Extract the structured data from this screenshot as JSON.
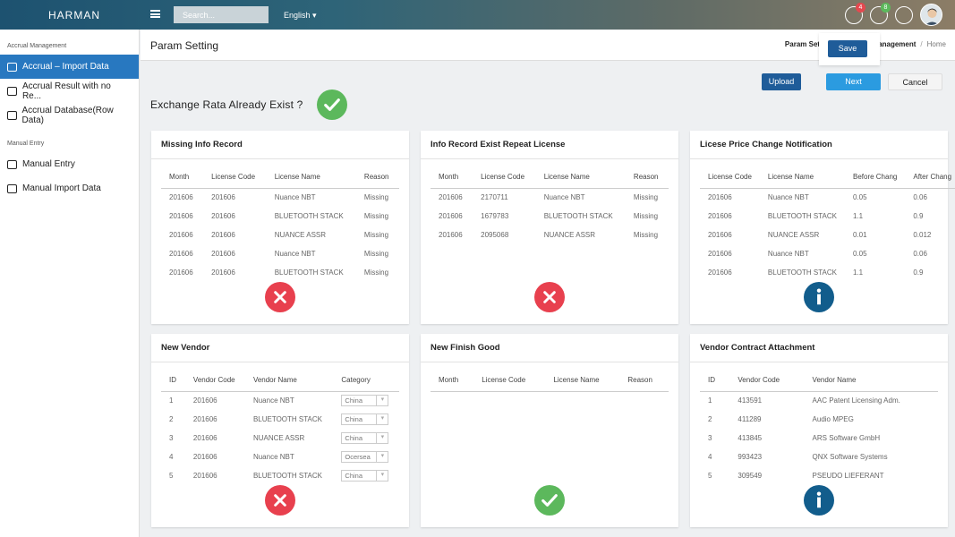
{
  "header": {
    "logo": "HARMAN",
    "search_placeholder": "Search...",
    "language": "English",
    "badges": [
      4,
      8
    ]
  },
  "sidebar": {
    "sections": [
      {
        "title": "Accrual Management",
        "items": [
          "Accrual – Import Data",
          "Accrual Result with no Re...",
          "Accrual Database(Row Data)"
        ],
        "active": 0
      },
      {
        "title": "Manual Entry",
        "items": [
          "Manual Entry",
          "Manual Import Data"
        ]
      }
    ]
  },
  "page": {
    "title": "Param Setting",
    "breadcrumb": [
      "Param Setting",
      "Accrual Management",
      "Home"
    ],
    "save": "Save",
    "buttons": [
      "Upload",
      "Next",
      "Cancel"
    ],
    "question": "Exchange Rata Already Exist ?",
    "question_status": "ok"
  },
  "panels": [
    {
      "title": "Missing Info Record",
      "status": "error",
      "columns": [
        "Month",
        "License Code",
        "License Name",
        "Reason"
      ],
      "rows": [
        [
          "201606",
          "201606",
          "Nuance NBT",
          "Missing"
        ],
        [
          "201606",
          "201606",
          "BLUETOOTH STACK",
          "Missing"
        ],
        [
          "201606",
          "201606",
          "NUANCE ASSR",
          "Missing"
        ],
        [
          "201606",
          "201606",
          "Nuance NBT",
          "Missing"
        ],
        [
          "201606",
          "201606",
          "BLUETOOTH STACK",
          "Missing"
        ]
      ]
    },
    {
      "title": "Info Record Exist Repeat License",
      "status": "error",
      "columns": [
        "Month",
        "License Code",
        "License Name",
        "Reason"
      ],
      "rows": [
        [
          "201606",
          "2170711",
          "Nuance NBT",
          "Missing"
        ],
        [
          "201606",
          "1679783",
          "BLUETOOTH STACK",
          "Missing"
        ],
        [
          "201606",
          "2095068",
          "NUANCE ASSR",
          "Missing"
        ]
      ]
    },
    {
      "title": "Licese Price Change Notification",
      "status": "info",
      "columns": [
        "License Code",
        "License Name",
        "Before Chang",
        "After Chang"
      ],
      "rows": [
        [
          "201606",
          "Nuance NBT",
          "0.05",
          "0.06"
        ],
        [
          "201606",
          "BLUETOOTH STACK",
          "1.1",
          "0.9"
        ],
        [
          "201606",
          "NUANCE ASSR",
          "0.01",
          "0.012"
        ],
        [
          "201606",
          "Nuance NBT",
          "0.05",
          "0.06"
        ],
        [
          "201606",
          "BLUETOOTH STACK",
          "1.1",
          "0.9"
        ]
      ]
    },
    {
      "title": "New Vendor",
      "status": "error",
      "select_column": 3,
      "columns": [
        "ID",
        "Vendor Code",
        "Vendor Name",
        "Category"
      ],
      "rows": [
        [
          "1",
          "201606",
          "Nuance NBT",
          "China"
        ],
        [
          "2",
          "201606",
          "BLUETOOTH STACK",
          "China"
        ],
        [
          "3",
          "201606",
          "NUANCE ASSR",
          "China"
        ],
        [
          "4",
          "201606",
          "Nuance NBT",
          "Ocersea"
        ],
        [
          "5",
          "201606",
          "BLUETOOTH STACK",
          "China"
        ]
      ]
    },
    {
      "title": "New Finish Good",
      "status": "ok",
      "columns": [
        "Month",
        "License Code",
        "License Name",
        "Reason"
      ],
      "rows": []
    },
    {
      "title": "Vendor Contract Attachment",
      "status": "info",
      "columns": [
        "ID",
        "Vendor Code",
        "Vendor Name"
      ],
      "rows": [
        [
          "1",
          "413591",
          "AAC Patent Licensing Adm."
        ],
        [
          "2",
          "411289",
          "Audio MPEG"
        ],
        [
          "3",
          "413845",
          "ARS Software GmbH"
        ],
        [
          "4",
          "993423",
          "QNX Software Systems"
        ],
        [
          "5",
          "309549",
          "PSEUDO LIEFERANT"
        ]
      ]
    }
  ]
}
